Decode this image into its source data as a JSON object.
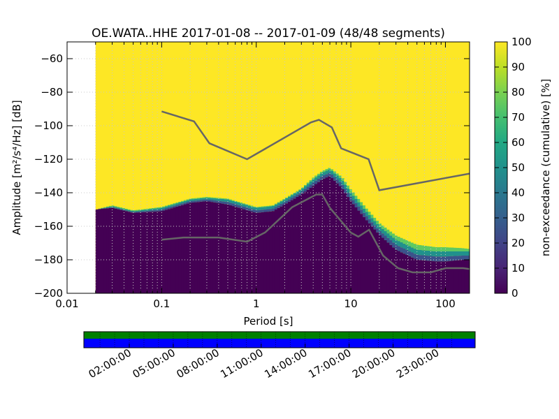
{
  "chart_data": {
    "type": "heatmap",
    "title": "OE.WATA..HHE   2017-01-08 -- 2017-01-09  (48/48 segments)",
    "xlabel": "Period [s]",
    "ylabel": "Amplitude [m²/s⁴/Hz] [dB]",
    "x_scale": "log",
    "xlim": [
      0.01,
      180
    ],
    "ylim": [
      -200,
      -50
    ],
    "x_ticks": [
      {
        "value": 0.01,
        "label": "0.01"
      },
      {
        "value": 0.1,
        "label": "0.1"
      },
      {
        "value": 1,
        "label": "1"
      },
      {
        "value": 10,
        "label": "10"
      },
      {
        "value": 100,
        "label": "100"
      }
    ],
    "y_ticks": [
      {
        "value": -60,
        "label": "−60"
      },
      {
        "value": -80,
        "label": "−80"
      },
      {
        "value": -100,
        "label": "−100"
      },
      {
        "value": -120,
        "label": "−120"
      },
      {
        "value": -140,
        "label": "−140"
      },
      {
        "value": -160,
        "label": "−160"
      },
      {
        "value": -180,
        "label": "−180"
      },
      {
        "value": -200,
        "label": "−200"
      }
    ],
    "grid": true,
    "psd_data_start_period": 0.02,
    "psd_band_profile": {
      "periods": [
        0.02,
        0.03,
        0.05,
        0.1,
        0.2,
        0.3,
        0.5,
        1,
        1.5,
        2,
        3,
        4,
        5,
        6,
        8,
        10,
        15,
        20,
        30,
        50,
        80,
        100,
        150,
        180
      ],
      "p10_db": [
        -150,
        -149,
        -152,
        -151,
        -146,
        -145,
        -147,
        -152,
        -151,
        -147,
        -141,
        -136,
        -132,
        -130,
        -137,
        -145,
        -157,
        -165,
        -174,
        -180,
        -181,
        -181,
        -180,
        -180
      ],
      "p50_db": [
        -150,
        -148,
        -151,
        -149,
        -144,
        -143,
        -144,
        -149,
        -148,
        -144,
        -138,
        -132,
        -128,
        -126,
        -132,
        -140,
        -152,
        -160,
        -168,
        -174,
        -175,
        -175,
        -175,
        -175
      ],
      "p100_db": [
        -150,
        -147,
        -150,
        -148,
        -143,
        -142,
        -143,
        -148,
        -147,
        -143,
        -137,
        -130,
        -126,
        -124,
        -129,
        -136,
        -148,
        -156,
        -163,
        -168,
        -170,
        -170,
        -171,
        -172
      ]
    },
    "noise_models": [
      {
        "name": "high-noise-model",
        "periods": [
          0.1,
          0.22,
          0.32,
          0.8,
          3.8,
          4.6,
          6.3,
          7.9,
          15.4,
          20,
          180
        ],
        "db": [
          -91.5,
          -97.4,
          -110.5,
          -120,
          -98,
          -96.5,
          -101,
          -113.5,
          -120,
          -138.5,
          -128.6
        ]
      },
      {
        "name": "low-noise-model",
        "periods": [
          0.1,
          0.17,
          0.4,
          0.8,
          1.24,
          2.4,
          4.3,
          5,
          6,
          10,
          12,
          15.6,
          21.9,
          31.6,
          45,
          70,
          101,
          154,
          180
        ],
        "db": [
          -168,
          -166.7,
          -166.7,
          -169.2,
          -163.7,
          -148.6,
          -141.1,
          -141.1,
          -149,
          -163.8,
          -166.2,
          -162.1,
          -177.5,
          -185,
          -187.5,
          -187.5,
          -185,
          -185,
          -185.5
        ]
      }
    ],
    "colorbar": {
      "label": "non-exceedance (cumulative) [%]",
      "min": 0,
      "max": 100,
      "ticks": [
        "0",
        "10",
        "20",
        "30",
        "40",
        "50",
        "60",
        "70",
        "80",
        "90",
        "100"
      ]
    },
    "timeline": {
      "ticks": [
        "02:00:00",
        "05:00:00",
        "08:00:00",
        "11:00:00",
        "14:00:00",
        "17:00:00",
        "20:00:00",
        "23:00:00"
      ],
      "data_color": "#0000ff",
      "gaps_color": "#008000"
    },
    "colors": {
      "viridis_low": "#440154",
      "viridis_high": "#fde725",
      "model_line": "#666666"
    }
  }
}
